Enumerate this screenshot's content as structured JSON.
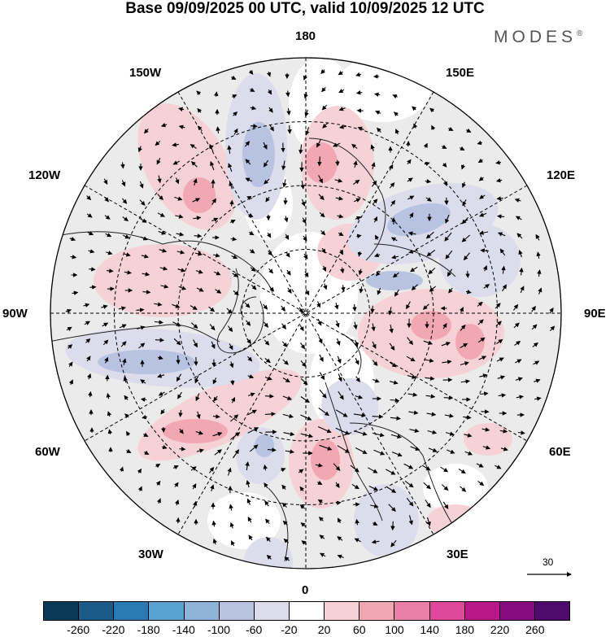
{
  "title": "Base 09/09/2025 00 UTC, valid 10/09/2025 12 UTC",
  "brand": "MODES",
  "brand_mark": "®",
  "longitude_labels": {
    "north": "180",
    "south": "0",
    "west": "90W",
    "east": "90E",
    "nw1": "150W",
    "nw2": "120W",
    "ne1": "150E",
    "ne2": "120E",
    "sw1": "60W",
    "sw2": "30W",
    "se1": "60E",
    "se2": "30E"
  },
  "vector_scale_label": "30",
  "colorbar": {
    "ticks": [
      "-260",
      "-220",
      "-180",
      "-140",
      "-100",
      "-60",
      "-20",
      "20",
      "60",
      "100",
      "140",
      "180",
      "220",
      "260"
    ],
    "colors": [
      "#0a3a57",
      "#1a5b8a",
      "#2a7bb5",
      "#5aa3d0",
      "#8fb3d9",
      "#b8c3e1",
      "#dcdced",
      "#ffffff",
      "#f6d1d5",
      "#f2a8b3",
      "#ec7fa6",
      "#e0489b",
      "#b81888",
      "#860c80",
      "#4e0b6d"
    ]
  }
}
